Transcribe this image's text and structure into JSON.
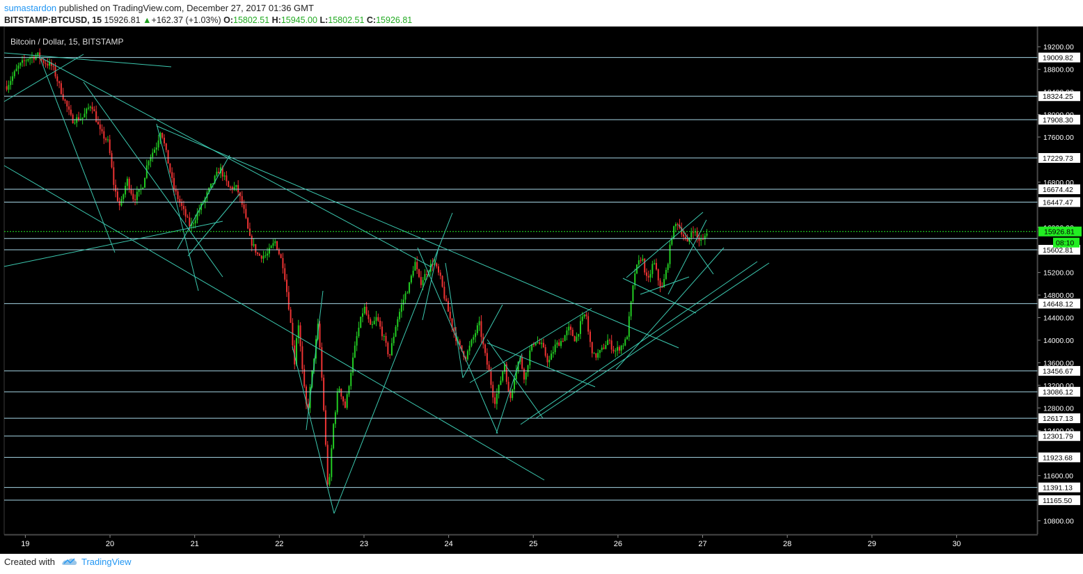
{
  "header": {
    "author": "sumastardon",
    "published_text": "published on TradingView.com, December 27, 2017 01:36 GMT",
    "symbol": "BITSTAMP:BTCUSD, 15",
    "last": "15926.81",
    "change": "+162.37 (+1.03%)",
    "o_label": "O:",
    "o_value": "15802.51",
    "h_label": "H:",
    "h_value": "15945.00",
    "l_label": "L:",
    "l_value": "15802.51",
    "c_label": "C:",
    "c_value": "15926.81"
  },
  "footer": {
    "created_with": "Created with",
    "brand": "TradingView"
  },
  "colors": {
    "background": "#000000",
    "up": "#22cc22",
    "down": "#ee3333",
    "level_line": "#a8d8e8",
    "trend_line": "#3cc9b0",
    "current_price": "#22ee22"
  },
  "chart_data": {
    "type": "candlestick",
    "title": "Bitcoin / Dollar, 15, BITSTAMP",
    "x_ticks": [
      "19",
      "20",
      "21",
      "22",
      "23",
      "24",
      "25",
      "26",
      "27",
      "28",
      "29",
      "30"
    ],
    "x_range_days": [
      18.75,
      30.95
    ],
    "ylim": [
      10560,
      19560
    ],
    "y_ticks": [
      10800,
      11600,
      12400,
      12800,
      13200,
      13600,
      14000,
      14400,
      14800,
      15200,
      15600,
      16000,
      16800,
      17600,
      18000,
      18400,
      18800,
      19200
    ],
    "y_tick_labels": [
      "10800.00",
      "11600.00",
      "12400.00",
      "12800.00",
      "13200.00",
      "13600.00",
      "14000.00",
      "14400.00",
      "14800.00",
      "15200.00",
      "15600.00",
      "16000.00",
      "16800.00",
      "17600.00",
      "18000.00",
      "18400.00",
      "18800.00",
      "19200.00"
    ],
    "levels": [
      19009.82,
      18324.25,
      17908.3,
      17229.73,
      16674.42,
      16447.47,
      15802.51,
      15602.81,
      14648.12,
      13456.67,
      13086.12,
      12617.13,
      12301.79,
      11923.68,
      11391.13,
      11165.5
    ],
    "level_labels": [
      "19009.82",
      "18324.25",
      "17908.30",
      "17229.73",
      "16674.42",
      "16447.47",
      "",
      "15602.81",
      "14648.12",
      "13456.67",
      "13086.12",
      "12617.13",
      "12301.79",
      "11923.68",
      "11391.13",
      "11165.50"
    ],
    "current_price": 15926.81,
    "current_price_label": "15926.81",
    "countdown_label": "08:10",
    "price_path": [
      [
        18.78,
        18500
      ],
      [
        18.92,
        18850
      ],
      [
        19.03,
        19000
      ],
      [
        19.15,
        19050
      ],
      [
        19.2,
        18950
      ],
      [
        19.32,
        18850
      ],
      [
        19.45,
        18300
      ],
      [
        19.55,
        17900
      ],
      [
        19.68,
        17950
      ],
      [
        19.78,
        18200
      ],
      [
        19.88,
        17700
      ],
      [
        19.98,
        17500
      ],
      [
        20.05,
        16700
      ],
      [
        20.12,
        16350
      ],
      [
        20.2,
        16850
      ],
      [
        20.28,
        16500
      ],
      [
        20.38,
        16700
      ],
      [
        20.45,
        17200
      ],
      [
        20.55,
        17450
      ],
      [
        20.6,
        17750
      ],
      [
        20.68,
        17200
      ],
      [
        20.75,
        16700
      ],
      [
        20.85,
        16350
      ],
      [
        20.95,
        16000
      ],
      [
        21.05,
        16300
      ],
      [
        21.12,
        16500
      ],
      [
        21.2,
        16750
      ],
      [
        21.3,
        17050
      ],
      [
        21.4,
        16700
      ],
      [
        21.5,
        16700
      ],
      [
        21.58,
        16300
      ],
      [
        21.65,
        15800
      ],
      [
        21.75,
        15500
      ],
      [
        21.85,
        15500
      ],
      [
        21.95,
        15750
      ],
      [
        22.05,
        15300
      ],
      [
        22.12,
        14500
      ],
      [
        22.18,
        13600
      ],
      [
        22.22,
        14400
      ],
      [
        22.28,
        13300
      ],
      [
        22.33,
        12700
      ],
      [
        22.4,
        13600
      ],
      [
        22.46,
        14300
      ],
      [
        22.52,
        12900
      ],
      [
        22.58,
        11200
      ],
      [
        22.63,
        12400
      ],
      [
        22.7,
        13200
      ],
      [
        22.78,
        12800
      ],
      [
        22.85,
        13500
      ],
      [
        22.92,
        14100
      ],
      [
        23.0,
        14600
      ],
      [
        23.08,
        14200
      ],
      [
        23.15,
        14400
      ],
      [
        23.22,
        14100
      ],
      [
        23.3,
        13700
      ],
      [
        23.38,
        14300
      ],
      [
        23.46,
        14700
      ],
      [
        23.54,
        15000
      ],
      [
        23.6,
        15400
      ],
      [
        23.66,
        15000
      ],
      [
        23.74,
        15200
      ],
      [
        23.82,
        15400
      ],
      [
        23.9,
        15100
      ],
      [
        23.96,
        14700
      ],
      [
        24.05,
        14200
      ],
      [
        24.12,
        13900
      ],
      [
        24.2,
        13700
      ],
      [
        24.28,
        14000
      ],
      [
        24.36,
        14300
      ],
      [
        24.42,
        13800
      ],
      [
        24.48,
        13400
      ],
      [
        24.54,
        12900
      ],
      [
        24.6,
        13200
      ],
      [
        24.66,
        13600
      ],
      [
        24.72,
        12900
      ],
      [
        24.78,
        13400
      ],
      [
        24.84,
        13700
      ],
      [
        24.9,
        13300
      ],
      [
        24.96,
        13800
      ],
      [
        25.02,
        14000
      ],
      [
        25.1,
        13900
      ],
      [
        25.18,
        13600
      ],
      [
        25.26,
        13900
      ],
      [
        25.34,
        14000
      ],
      [
        25.42,
        14200
      ],
      [
        25.5,
        14000
      ],
      [
        25.56,
        14300
      ],
      [
        25.62,
        14500
      ],
      [
        25.66,
        14000
      ],
      [
        25.72,
        13700
      ],
      [
        25.8,
        13800
      ],
      [
        25.88,
        14000
      ],
      [
        25.96,
        13800
      ],
      [
        26.04,
        13900
      ],
      [
        26.1,
        14000
      ],
      [
        26.15,
        14600
      ],
      [
        26.2,
        15200
      ],
      [
        26.28,
        15500
      ],
      [
        26.35,
        15000
      ],
      [
        26.42,
        15400
      ],
      [
        26.48,
        15050
      ],
      [
        26.52,
        14900
      ],
      [
        26.58,
        15300
      ],
      [
        26.64,
        15900
      ],
      [
        26.7,
        16100
      ],
      [
        26.76,
        15900
      ],
      [
        26.82,
        15700
      ],
      [
        26.88,
        16000
      ],
      [
        26.94,
        15800
      ],
      [
        27.0,
        15750
      ],
      [
        27.05,
        15930
      ]
    ]
  }
}
